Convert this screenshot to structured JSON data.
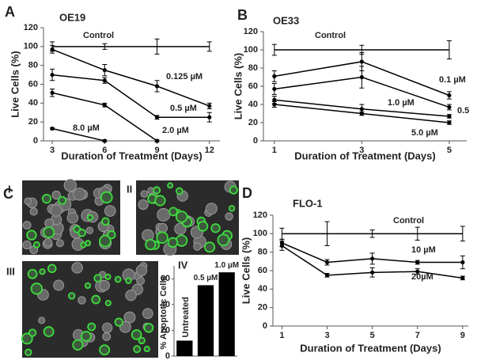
{
  "panel_c": {
    "panel": "C",
    "images": [
      "I",
      "II",
      "III"
    ]
  },
  "chart_data": [
    {
      "type": "line",
      "panel": "A",
      "title": "OE19",
      "x_label": "Duration of Treatment (Days)",
      "y_label": "Live Cells (%)",
      "x": [
        3,
        6,
        9,
        12
      ],
      "xlim": [
        2.5,
        12.6
      ],
      "xticks": [
        3,
        6,
        9,
        12
      ],
      "ylim": [
        0,
        120
      ],
      "yticks": [
        0,
        20,
        40,
        60,
        80,
        100,
        120
      ],
      "series": [
        {
          "name": "Control",
          "color": "#000000",
          "values": [
            100,
            100,
            100,
            100
          ],
          "errors": [
            5,
            3,
            8,
            5
          ]
        },
        {
          "name": "0.125 µM",
          "color": "#000000",
          "values": [
            97,
            75,
            58,
            37
          ],
          "errors": [
            4,
            6,
            6,
            3
          ]
        },
        {
          "name": "0.5 µM",
          "color": "#000000",
          "values": [
            70,
            64,
            25,
            25
          ],
          "errors": [
            6,
            3,
            2,
            5
          ]
        },
        {
          "name": "2.0 µM",
          "color": "#000000",
          "values": [
            51,
            38,
            0,
            null
          ],
          "errors": [
            4,
            2,
            1,
            null
          ]
        },
        {
          "name": "8.0 µM",
          "color": "#000000",
          "values": [
            13,
            0,
            null,
            null
          ],
          "errors": [
            1,
            1,
            null,
            null
          ]
        }
      ]
    },
    {
      "type": "line",
      "panel": "B",
      "title": "OE33",
      "x_label": "Duration of Treatment (Days)",
      "y_label": "Live Cells (%)",
      "x": [
        1,
        3,
        5
      ],
      "xlim": [
        0.75,
        5.4
      ],
      "xticks": [
        1,
        3,
        5
      ],
      "ylim": [
        0,
        120
      ],
      "yticks": [
        0,
        20,
        40,
        60,
        80,
        100,
        120
      ],
      "series": [
        {
          "name": "Control",
          "color": "#000000",
          "values": [
            100,
            100,
            100
          ],
          "errors": [
            6,
            5,
            10
          ]
        },
        {
          "name": "0.1 µM",
          "color": "#000000",
          "values": [
            71,
            87,
            50
          ],
          "errors": [
            6,
            10,
            4
          ]
        },
        {
          "name": "0.5",
          "color": "#000000",
          "values": [
            57,
            70,
            37
          ],
          "errors": [
            6,
            12,
            3
          ]
        },
        {
          "name": "1.0 µM",
          "color": "#000000",
          "values": [
            45,
            35,
            27
          ],
          "errors": [
            4,
            5,
            2
          ]
        },
        {
          "name": "5.0 µM",
          "color": "#000000",
          "values": [
            40,
            30,
            20
          ],
          "errors": [
            3,
            2,
            2
          ]
        }
      ]
    },
    {
      "type": "line",
      "panel": "D",
      "title": "FLO-1",
      "x_label": "Duration of Treatment (Days)",
      "y_label": "Live Cells (%)",
      "x": [
        1,
        3,
        5,
        7,
        9
      ],
      "xlim": [
        0.6,
        9.25
      ],
      "xticks": [
        1,
        3,
        5,
        7,
        9
      ],
      "ylim": [
        0,
        120
      ],
      "yticks": [
        0,
        20,
        40,
        60,
        80,
        100,
        120
      ],
      "series": [
        {
          "name": "Control",
          "color": "#000000",
          "values": [
            100,
            100,
            100,
            100,
            100
          ],
          "errors": [
            6,
            13,
            4,
            7,
            8
          ]
        },
        {
          "name": "10 µM",
          "color": "#000000",
          "values": [
            90,
            69,
            73,
            69,
            69
          ],
          "errors": [
            4,
            3,
            6,
            2,
            7
          ]
        },
        {
          "name": "20µM",
          "color": "#000000",
          "values": [
            87,
            55,
            58,
            59,
            52
          ],
          "errors": [
            5,
            2,
            5,
            3,
            2
          ]
        }
      ]
    },
    {
      "type": "bar",
      "panel": "IV",
      "y_label": "% Apoptotic Cells",
      "categories": [
        "Untreated",
        "0.5 µM",
        "1.0 µM"
      ],
      "values": [
        12,
        55,
        65
      ],
      "color": "#000000",
      "ylim": [
        0,
        70
      ],
      "yticks": [
        0,
        20,
        40,
        60
      ]
    }
  ]
}
